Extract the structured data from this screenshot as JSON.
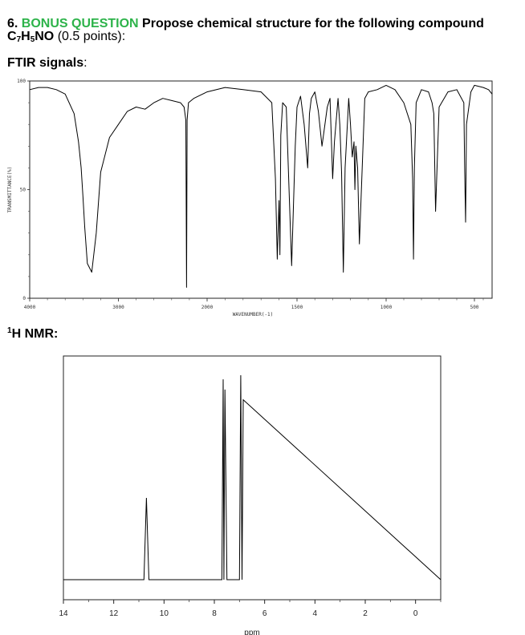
{
  "question": {
    "number": "6.",
    "bonus": "BONUS QUESTION",
    "prompt_a": "Propose chemical structure for the following compound C",
    "sub7": "7",
    "h": "H",
    "sub5": "5",
    "no": "NO",
    "points": "(0.5 points):"
  },
  "ftir_heading": {
    "label": "FTIR signals",
    "colon": ":"
  },
  "nmr_heading": {
    "sup": "1",
    "label": "H NMR:"
  },
  "colors": {
    "bonus": "#2db34a",
    "trace": "#000000"
  },
  "chart_data": [
    {
      "type": "line",
      "title": "",
      "xlabel": "WAVENUMBER(-1)",
      "ylabel": "TRANSMITTANCE(%)",
      "xlim": [
        4000,
        400
      ],
      "ylim": [
        0,
        100
      ],
      "x_ticks": [
        "4000",
        "3000",
        "2000",
        "1500",
        "1000",
        "500"
      ],
      "y_ticks": [
        "100",
        "50",
        "0"
      ],
      "grid": false,
      "series": [
        {
          "x": [
            4000,
            3900,
            3800,
            3700,
            3600,
            3500,
            3450,
            3420,
            3400,
            3380,
            3350,
            3300,
            3250,
            3200,
            3100,
            3000,
            2900,
            2800,
            2700,
            2600,
            2500,
            2400,
            2300,
            2260,
            2240,
            2232,
            2225,
            2210,
            2150,
            2000,
            1900,
            1800,
            1700,
            1640,
            1620,
            1610,
            1600,
            1595,
            1590,
            1580,
            1560,
            1530,
            1510,
            1500,
            1480,
            1460,
            1440,
            1430,
            1420,
            1400,
            1380,
            1360,
            1330,
            1315,
            1300,
            1290,
            1270,
            1260,
            1250,
            1240,
            1230,
            1210,
            1200,
            1190,
            1180,
            1175,
            1170,
            1160,
            1150,
            1120,
            1100,
            1050,
            1000,
            950,
            900,
            860,
            850,
            845,
            840,
            830,
            800,
            760,
            740,
            730,
            720,
            700,
            650,
            600,
            560,
            555,
            550,
            545,
            520,
            500,
            450,
            420,
            400
          ],
          "y": [
            96,
            97,
            97,
            96,
            94,
            85,
            72,
            60,
            47,
            33,
            16,
            12,
            30,
            58,
            74,
            80,
            86,
            88,
            87,
            90,
            92,
            91,
            90,
            88,
            82,
            5,
            82,
            90,
            92,
            95,
            97,
            96,
            95,
            90,
            55,
            18,
            45,
            20,
            75,
            90,
            88,
            15,
            70,
            88,
            93,
            80,
            60,
            85,
            92,
            95,
            86,
            70,
            88,
            92,
            55,
            72,
            92,
            80,
            58,
            12,
            60,
            92,
            80,
            65,
            72,
            50,
            70,
            60,
            25,
            92,
            95,
            96,
            98,
            96,
            90,
            80,
            55,
            18,
            60,
            90,
            96,
            95,
            90,
            85,
            40,
            88,
            95,
            96,
            90,
            58,
            35,
            80,
            95,
            98,
            97,
            96,
            94
          ]
        }
      ]
    },
    {
      "type": "line",
      "title": "",
      "xlabel": "ppm",
      "ylabel": "",
      "xlim": [
        14,
        -1
      ],
      "x_ticks": [
        "14",
        "12",
        "10",
        "8",
        "6",
        "4",
        "2",
        "0"
      ],
      "grid": false,
      "series": [
        {
          "x": [
            14,
            10.8,
            10.7,
            10.6,
            7.7,
            7.65,
            7.62,
            7.58,
            7.5,
            7.0,
            6.95,
            6.9,
            6.85,
            -1
          ],
          "y": [
            0,
            0,
            0.4,
            0,
            0,
            0.98,
            0,
            0.93,
            0,
            0,
            1.0,
            0,
            0.88,
            0
          ]
        }
      ]
    }
  ]
}
